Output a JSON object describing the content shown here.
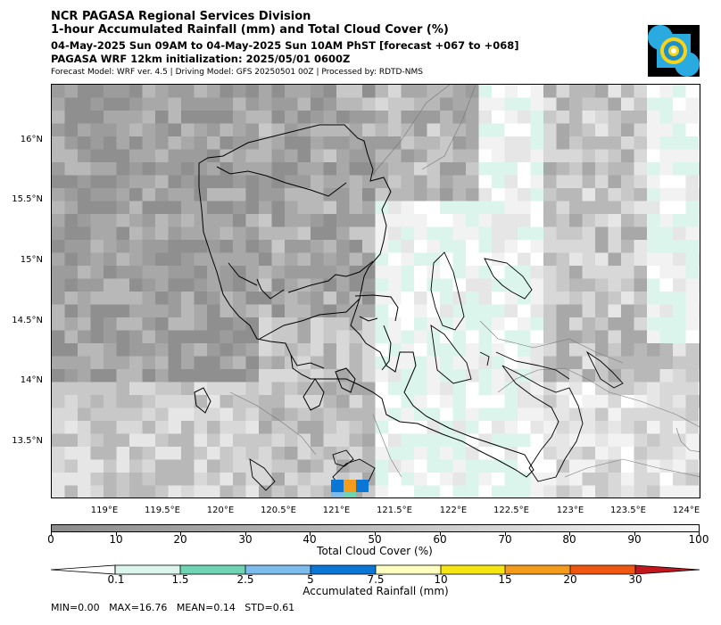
{
  "header": {
    "line1": "NCR PAGASA Regional Services Division",
    "line2": "1-hour Accumulated Rainfall (mm) and Total Cloud Cover (%)",
    "line3": "04-May-2025 Sun 09AM to 04-May-2025 Sun 10AM PhST [forecast +067 to +068]",
    "line4": "PAGASA WRF 12km initialization: 2025/05/01 0600Z",
    "line5": "Forecast Model: WRF ver. 4.5 | Driving Model: GFS 20250501 00Z | Processed by: RDTD-NMS"
  },
  "logo": {
    "icon": "pagasa-logo-icon",
    "colors": [
      "#000000",
      "#29abe2",
      "#f7d417"
    ]
  },
  "map": {
    "lat_labels": [
      "16°N",
      "15.5°N",
      "15°N",
      "14.5°N",
      "14°N",
      "13.5°N"
    ],
    "lon_labels": [
      "119°E",
      "119.5°E",
      "120°E",
      "120.5°E",
      "121°E",
      "121.5°E",
      "122°E",
      "122.5°E",
      "123°E",
      "123.5°E",
      "124°E"
    ]
  },
  "cloud_colorbar": {
    "title": "Total Cloud Cover (%)",
    "ticks": [
      "0",
      "10",
      "20",
      "30",
      "40",
      "50",
      "60",
      "70",
      "80",
      "90",
      "100"
    ],
    "colors": [
      "#8c8c8c",
      "#b5b5b5",
      "#dcdcdc",
      "#f8f8f8"
    ]
  },
  "rain_colorbar": {
    "title": "Accumulated Rainfall (mm)",
    "ticks": [
      "0.1",
      "1.5",
      "2.5",
      "5",
      "7.5",
      "10",
      "15",
      "20",
      "30"
    ],
    "colors": [
      "#ffffff",
      "#dbf4ec",
      "#6ed4b3",
      "#7cbdee",
      "#0a76d6",
      "#ffffc0",
      "#f7e512",
      "#f59b1c",
      "#ef5611",
      "#c4161d"
    ]
  },
  "stats": {
    "text": "MIN=0.00   MAX=16.76   MEAN=0.14   STD=0.61"
  }
}
